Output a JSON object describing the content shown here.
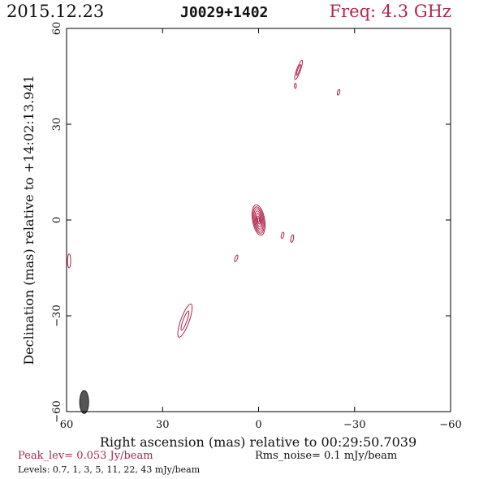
{
  "header": {
    "date": "2015.12.23",
    "source": "J0029+1402",
    "freq": "Freq: 4.3 GHz"
  },
  "footer": {
    "peak": "Peak_lev=  0.053 Jy/beam",
    "rms": "Rms_noise=   0.1 mJy/beam",
    "levels": "Levels: 0.7,    1,    3,    5,   11,   22,   43  mJy/beam"
  },
  "colors": {
    "contour": "#b0264c",
    "beam_fill": "#555555",
    "axis": "#000000"
  },
  "chart_data": {
    "type": "contour",
    "xlabel": "Right ascension (mas) relative to 00:29:50.7039",
    "ylabel": "Declination (mas) relative to +14:02:13.941",
    "xlim": [
      60,
      -60
    ],
    "ylim": [
      -60,
      60
    ],
    "xticks": [
      60,
      30,
      0,
      -30,
      -60
    ],
    "yticks": [
      -60,
      -30,
      0,
      30,
      60
    ],
    "xtick_labels": [
      "60",
      "30",
      "0",
      "−30",
      "−60"
    ],
    "ytick_labels": [
      "−60",
      "−30",
      "0",
      "30",
      "60"
    ],
    "beam": {
      "x": 54.5,
      "y": -57,
      "major": 3.6,
      "minor": 1.4,
      "pa_deg": 0
    },
    "components": [
      {
        "name": "core",
        "x": 0,
        "y": 0,
        "levels": [
          {
            "rx": 1.9,
            "ry": 4.8,
            "angle": -10
          },
          {
            "rx": 1.6,
            "ry": 4.2,
            "angle": -10
          },
          {
            "rx": 1.3,
            "ry": 3.6,
            "angle": -10
          },
          {
            "rx": 1.0,
            "ry": 2.9,
            "angle": -10
          },
          {
            "rx": 0.7,
            "ry": 2.1,
            "angle": -10
          },
          {
            "rx": 0.45,
            "ry": 1.3,
            "angle": -10
          },
          {
            "rx": 0.25,
            "ry": 0.6,
            "angle": -10
          }
        ]
      },
      {
        "name": "jet-ne-1",
        "x": -12.5,
        "y": 47,
        "levels": [
          {
            "rx": 0.6,
            "ry": 3.2,
            "angle": 20
          },
          {
            "rx": 0.3,
            "ry": 1.8,
            "angle": 20
          }
        ]
      },
      {
        "name": "jet-ne-2",
        "x": -11.5,
        "y": 42,
        "levels": [
          {
            "rx": 0.3,
            "ry": 0.8,
            "angle": 0
          }
        ]
      },
      {
        "name": "jet-ne-3",
        "x": -25,
        "y": 40,
        "levels": [
          {
            "rx": 0.35,
            "ry": 0.9,
            "angle": 15
          }
        ]
      },
      {
        "name": "blob-e-1",
        "x": -7.5,
        "y": -4.8,
        "levels": [
          {
            "rx": 0.4,
            "ry": 1.0,
            "angle": 15
          }
        ]
      },
      {
        "name": "blob-e-2",
        "x": -10.5,
        "y": -5.8,
        "levels": [
          {
            "rx": 0.4,
            "ry": 1.2,
            "angle": 10
          }
        ]
      },
      {
        "name": "blob-w-1",
        "x": 7,
        "y": -12,
        "levels": [
          {
            "rx": 0.4,
            "ry": 1.1,
            "angle": 20
          }
        ]
      },
      {
        "name": "jet-sw",
        "x": 23,
        "y": -31.5,
        "levels": [
          {
            "rx": 1.3,
            "ry": 5.5,
            "angle": 20
          },
          {
            "rx": 0.6,
            "ry": 3.2,
            "angle": 20
          }
        ]
      },
      {
        "name": "edge-blob",
        "x": 59.2,
        "y": -12.8,
        "levels": [
          {
            "rx": 0.5,
            "ry": 2.2,
            "angle": 0
          }
        ]
      }
    ]
  }
}
